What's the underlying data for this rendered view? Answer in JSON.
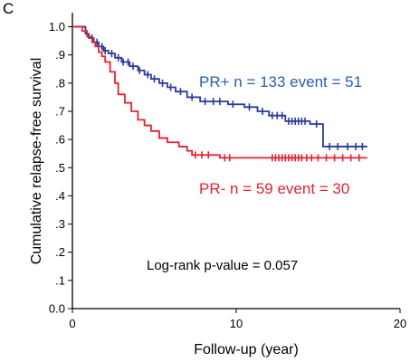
{
  "chart_data": {
    "type": "line",
    "panel_label": "C",
    "xlabel": "Follow-up (year)",
    "ylabel": "Cumulative relapse-free survival",
    "xlim": [
      0,
      20
    ],
    "ylim": [
      0,
      1.05
    ],
    "x_ticks": [
      0,
      10,
      20
    ],
    "x_tick_labels": [
      "0",
      "10",
      "20"
    ],
    "y_ticks": [
      0.0,
      0.1,
      0.2,
      0.3,
      0.4,
      0.5,
      0.6,
      0.7,
      0.8,
      0.9,
      1.0
    ],
    "y_tick_labels": [
      "0.0",
      ".1",
      ".2",
      ".3",
      ".4",
      ".5",
      ".6",
      ".7",
      ".8",
      ".9",
      "1.0"
    ],
    "grid": false,
    "legend": "none",
    "series": [
      {
        "name": "PR+",
        "color": "#2b3a9a",
        "step_points": [
          [
            0,
            1.0
          ],
          [
            0.8,
            0.975
          ],
          [
            1.0,
            0.96
          ],
          [
            1.3,
            0.945
          ],
          [
            1.6,
            0.93
          ],
          [
            1.9,
            0.915
          ],
          [
            2.2,
            0.905
          ],
          [
            2.6,
            0.89
          ],
          [
            3.0,
            0.875
          ],
          [
            3.5,
            0.86
          ],
          [
            4.0,
            0.845
          ],
          [
            4.4,
            0.83
          ],
          [
            4.8,
            0.815
          ],
          [
            5.3,
            0.8
          ],
          [
            5.8,
            0.785
          ],
          [
            6.3,
            0.77
          ],
          [
            7.0,
            0.75
          ],
          [
            7.8,
            0.735
          ],
          [
            9.5,
            0.725
          ],
          [
            10.5,
            0.715
          ],
          [
            11.3,
            0.7
          ],
          [
            12.0,
            0.685
          ],
          [
            13.0,
            0.665
          ],
          [
            14.5,
            0.655
          ],
          [
            15.3,
            0.575
          ],
          [
            18.0,
            0.575
          ]
        ],
        "censor_x": [
          1.2,
          1.5,
          1.8,
          2.0,
          2.4,
          2.8,
          3.1,
          3.4,
          3.7,
          4.1,
          4.6,
          5.0,
          5.5,
          6.0,
          6.6,
          7.3,
          8.1,
          8.6,
          9.0,
          9.8,
          10.8,
          11.6,
          12.2,
          12.5,
          12.8,
          13.2,
          13.4,
          13.6,
          13.8,
          14.0,
          14.2,
          14.9,
          15.7,
          16.2,
          16.8,
          17.3,
          17.7
        ]
      },
      {
        "name": "PR-",
        "color": "#e32230",
        "step_points": [
          [
            0,
            1.0
          ],
          [
            0.6,
            0.985
          ],
          [
            0.9,
            0.965
          ],
          [
            1.2,
            0.945
          ],
          [
            1.4,
            0.93
          ],
          [
            1.6,
            0.91
          ],
          [
            1.8,
            0.895
          ],
          [
            2.0,
            0.875
          ],
          [
            2.3,
            0.84
          ],
          [
            2.6,
            0.8
          ],
          [
            2.8,
            0.76
          ],
          [
            3.2,
            0.73
          ],
          [
            3.6,
            0.7
          ],
          [
            4.0,
            0.67
          ],
          [
            4.4,
            0.65
          ],
          [
            4.8,
            0.63
          ],
          [
            5.3,
            0.605
          ],
          [
            5.8,
            0.59
          ],
          [
            6.5,
            0.575
          ],
          [
            7.0,
            0.56
          ],
          [
            7.3,
            0.545
          ],
          [
            9.0,
            0.535
          ],
          [
            18.0,
            0.535
          ]
        ],
        "censor_x": [
          7.5,
          7.9,
          8.3,
          9.3,
          9.6,
          12.2,
          12.4,
          12.6,
          12.8,
          13.0,
          13.2,
          13.4,
          13.6,
          13.8,
          14.0,
          14.3,
          14.6,
          15.0,
          15.5,
          16.0,
          16.5,
          17.0,
          17.5
        ]
      }
    ],
    "annotations": [
      {
        "id": "prpos",
        "text": "PR+  n = 133 event = 51",
        "color": "#2b5fa8"
      },
      {
        "id": "prneg",
        "text": "PR-  n = 59  event = 30",
        "color": "#e32230"
      },
      {
        "id": "pval",
        "text": "Log-rank p-value = 0.057",
        "color": "#000000"
      }
    ]
  }
}
